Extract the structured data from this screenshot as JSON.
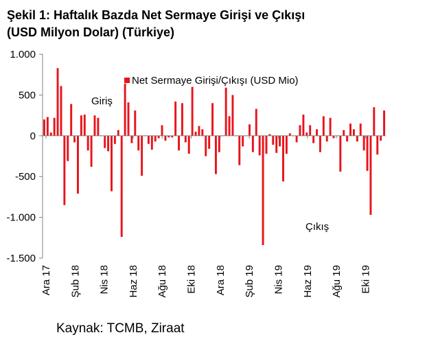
{
  "title_line1": "Şekil 1: Haftalık Bazda Net Sermaye Girişi ve Çıkışı",
  "title_line2": "(USD Milyon Dolar) (Türkiye)",
  "source": "Kaynak: TCMB, Ziraat",
  "colors": {
    "bar": "#e8141c",
    "axis": "#808080"
  },
  "chart_data": {
    "type": "bar",
    "ylim": [
      -1500,
      1000
    ],
    "yticks": [
      1000,
      500,
      0,
      -500,
      -1000,
      -1500
    ],
    "ytick_labels": [
      "1.000",
      "500",
      "0",
      "-500",
      "-1.000",
      "-1.500"
    ],
    "xtick_labels": [
      "Ara 17",
      "Şub 18",
      "Nis 18",
      "Haz 18",
      "Ağu 18",
      "Eki 18",
      "Ara 18",
      "Şub 19",
      "Nis 19",
      "Haz 19",
      "Ağu 19",
      "Eki 19"
    ],
    "legend": "Net Sermaye Girişi/Çıkışı (USD Mio)",
    "legend_position": "top",
    "annotations": [
      "Giriş",
      "Çıkış"
    ],
    "grid": false,
    "series": [
      {
        "name": "Net Sermaye Girişi/Çıkışı (USD Mio)",
        "values": [
          200,
          230,
          40,
          220,
          830,
          610,
          -850,
          -310,
          390,
          -80,
          -710,
          250,
          260,
          -180,
          -380,
          250,
          220,
          0,
          -150,
          -190,
          -680,
          -100,
          70,
          -1240,
          640,
          410,
          -90,
          310,
          -180,
          -490,
          0,
          -100,
          -170,
          -70,
          -30,
          130,
          -60,
          -20,
          -20,
          420,
          -180,
          400,
          -80,
          -220,
          600,
          50,
          120,
          80,
          -250,
          -160,
          400,
          -470,
          -200,
          0,
          590,
          240,
          500,
          0,
          -360,
          -130,
          0,
          140,
          -200,
          330,
          -240,
          -1340,
          -220,
          20,
          -110,
          -210,
          -130,
          -560,
          -220,
          30,
          0,
          -80,
          130,
          260,
          40,
          130,
          -90,
          80,
          -200,
          240,
          -70,
          220,
          -30,
          0,
          -440,
          70,
          -70,
          150,
          80,
          -70,
          150,
          -180,
          -430,
          -970,
          350,
          -230,
          -60,
          310
        ]
      }
    ]
  }
}
